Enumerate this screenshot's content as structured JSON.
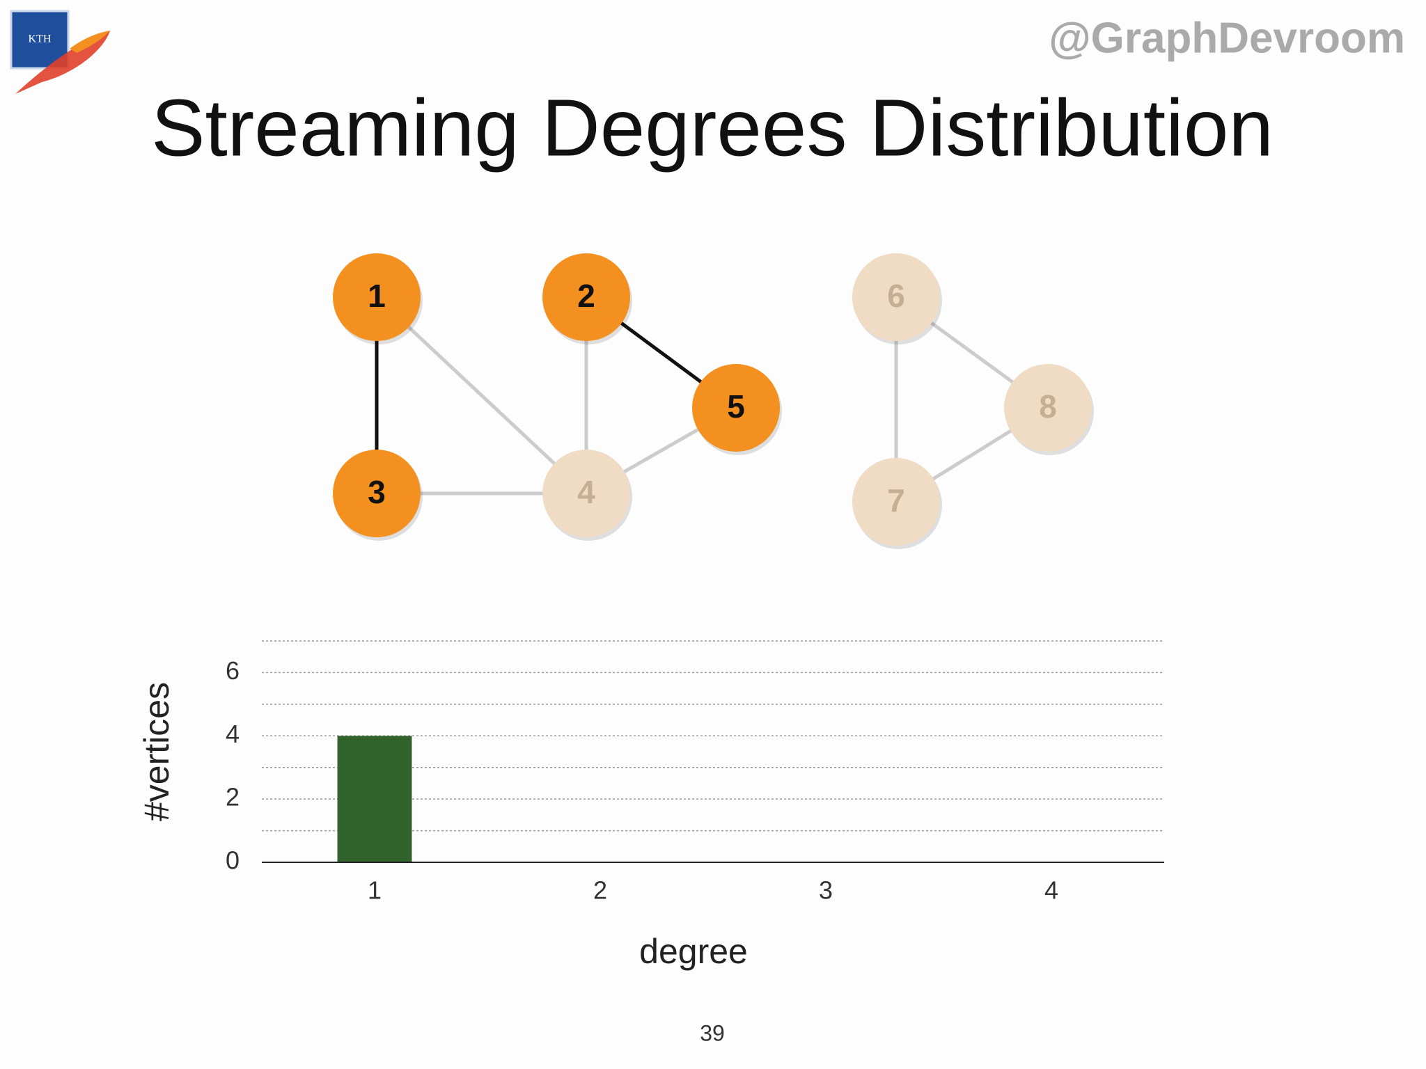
{
  "header": {
    "handle": "@GraphDevroom",
    "title": "Streaming Degrees Distribution",
    "logo_text": "KTH"
  },
  "graph": {
    "nodes": [
      {
        "label": "1",
        "active": true
      },
      {
        "label": "2",
        "active": true
      },
      {
        "label": "3",
        "active": true
      },
      {
        "label": "4",
        "active": false
      },
      {
        "label": "5",
        "active": true
      },
      {
        "label": "6",
        "active": false
      },
      {
        "label": "7",
        "active": false
      },
      {
        "label": "8",
        "active": false
      }
    ],
    "active_color": "#f39020",
    "inactive_color": "#f0dcc4"
  },
  "chart_data": {
    "type": "bar",
    "categories": [
      "1",
      "2",
      "3",
      "4"
    ],
    "values": [
      4,
      0,
      0,
      0
    ],
    "color": "#33632c",
    "ylim": [
      0,
      7
    ],
    "yticks": [
      0,
      2,
      4,
      6
    ],
    "minor_yticks": [
      1,
      3,
      5,
      7
    ],
    "grid": true,
    "xlabel": "degree",
    "ylabel": "#vertices"
  },
  "footer": {
    "page": "39"
  }
}
